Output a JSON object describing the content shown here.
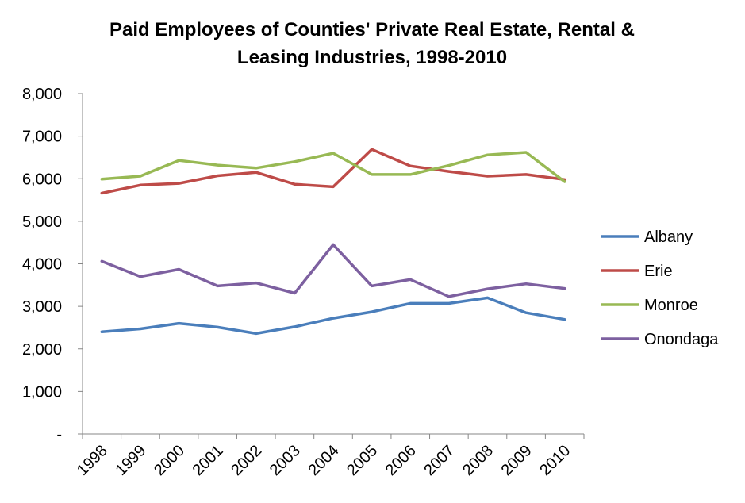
{
  "chart_data": {
    "type": "line",
    "title": "Paid Employees of Counties' Private Real Estate, Rental & Leasing Industries, 1998-2010",
    "title_lines": [
      "Paid Employees of Counties' Private Real Estate, Rental &",
      "Leasing Industries, 1998-2010"
    ],
    "xlabel": "",
    "ylabel": "",
    "categories": [
      "1998",
      "1999",
      "2000",
      "2001",
      "2002",
      "2003",
      "2004",
      "2005",
      "2006",
      "2007",
      "2008",
      "2009",
      "2010"
    ],
    "ylim": [
      0,
      8000
    ],
    "yticks": [
      0,
      1000,
      2000,
      3000,
      4000,
      5000,
      6000,
      7000,
      8000
    ],
    "ytick_labels": [
      "-",
      "1,000",
      "2,000",
      "3,000",
      "4,000",
      "5,000",
      "6,000",
      "7,000",
      "8,000"
    ],
    "grid": false,
    "legend_position": "right",
    "series": [
      {
        "name": "Albany",
        "color": "#4a7ebb",
        "values": [
          2400,
          2470,
          2600,
          2510,
          2360,
          2520,
          2720,
          2870,
          3070,
          3070,
          3200,
          2850,
          2690
        ]
      },
      {
        "name": "Erie",
        "color": "#be4b48",
        "values": [
          5660,
          5850,
          5890,
          6070,
          6150,
          5870,
          5810,
          6690,
          6300,
          6170,
          6060,
          6100,
          5980
        ]
      },
      {
        "name": "Monroe",
        "color": "#98b954",
        "values": [
          5990,
          6060,
          6430,
          6320,
          6250,
          6400,
          6600,
          6100,
          6100,
          6310,
          6560,
          6620,
          5930
        ]
      },
      {
        "name": "Onondaga",
        "color": "#7d60a0",
        "values": [
          4060,
          3700,
          3870,
          3480,
          3550,
          3310,
          4450,
          3480,
          3630,
          3230,
          3410,
          3530,
          3420
        ]
      }
    ]
  }
}
